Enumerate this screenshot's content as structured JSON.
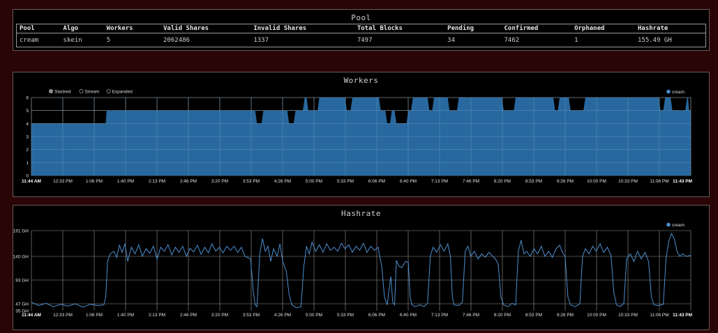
{
  "pool": {
    "title": "Pool",
    "headers": [
      "Pool",
      "Algo",
      "Workers",
      "Valid Shares",
      "Invalid Shares",
      "Total Blocks",
      "Pending",
      "Confirmed",
      "Orphaned",
      "Hashrate"
    ],
    "row": [
      "cream",
      "skein",
      "5",
      "2062486",
      "1337",
      "7497",
      "34",
      "7462",
      "1",
      "155.49 GH"
    ]
  },
  "colors": {
    "series": "#2a6ea6",
    "line": "#4b8fd0",
    "grid": "#bdbdbd",
    "panel_bg": "#000000",
    "page_bg": "#2a0505"
  },
  "chart_data": [
    {
      "type": "area",
      "title": "Workers",
      "controls": [
        "Stacked",
        "Stream",
        "Expanded"
      ],
      "legend": {
        "position": "top-right",
        "entries": [
          "cream"
        ]
      },
      "series_name": "cream",
      "x_ticks": [
        "11:44 AM",
        "12:33 PM",
        "1:06 PM",
        "1:40 PM",
        "2:13 PM",
        "2:46 PM",
        "3:20 PM",
        "3:53 PM",
        "4:26 PM",
        "5:00 PM",
        "5:33 PM",
        "6:06 PM",
        "6:40 PM",
        "7:13 PM",
        "7:46 PM",
        "8:20 PM",
        "8:53 PM",
        "9:26 PM",
        "10:00 PM",
        "10:33 PM",
        "11:06 PM",
        "11:43 PM"
      ],
      "x_range_minutes": [
        704,
        1423
      ],
      "ylim": [
        0,
        6
      ],
      "y_ticks": [
        "0",
        "1",
        "2",
        "3",
        "4",
        "5",
        "6"
      ],
      "grid": true,
      "points": [
        [
          704,
          4
        ],
        [
          785,
          4
        ],
        [
          786,
          5
        ],
        [
          948,
          5
        ],
        [
          950,
          4
        ],
        [
          955,
          4
        ],
        [
          957,
          5
        ],
        [
          983,
          5
        ],
        [
          985,
          4
        ],
        [
          990,
          4
        ],
        [
          992,
          5
        ],
        [
          1000,
          5
        ],
        [
          1002,
          6
        ],
        [
          1004,
          6
        ],
        [
          1006,
          5
        ],
        [
          1016,
          5
        ],
        [
          1018,
          6
        ],
        [
          1046,
          6
        ],
        [
          1048,
          5
        ],
        [
          1052,
          5
        ],
        [
          1054,
          6
        ],
        [
          1083,
          6
        ],
        [
          1085,
          5
        ],
        [
          1090,
          5
        ],
        [
          1092,
          4
        ],
        [
          1095,
          4
        ],
        [
          1097,
          5
        ],
        [
          1100,
          5
        ],
        [
          1102,
          4
        ],
        [
          1113,
          4
        ],
        [
          1115,
          5
        ],
        [
          1118,
          5
        ],
        [
          1120,
          6
        ],
        [
          1136,
          6
        ],
        [
          1138,
          5
        ],
        [
          1141,
          5
        ],
        [
          1143,
          6
        ],
        [
          1158,
          6
        ],
        [
          1160,
          5
        ],
        [
          1168,
          5
        ],
        [
          1170,
          6
        ],
        [
          1217,
          6
        ],
        [
          1219,
          5
        ],
        [
          1230,
          5
        ],
        [
          1232,
          6
        ],
        [
          1273,
          6
        ],
        [
          1275,
          5
        ],
        [
          1278,
          5
        ],
        [
          1280,
          6
        ],
        [
          1290,
          6
        ],
        [
          1292,
          5
        ],
        [
          1306,
          5
        ],
        [
          1308,
          6
        ],
        [
          1388,
          6
        ],
        [
          1390,
          5
        ],
        [
          1393,
          5
        ],
        [
          1395,
          6
        ],
        [
          1401,
          6
        ],
        [
          1403,
          5
        ],
        [
          1417,
          5
        ],
        [
          1419,
          6
        ],
        [
          1420,
          6
        ],
        [
          1421,
          5
        ],
        [
          1423,
          5
        ]
      ]
    },
    {
      "type": "line",
      "title": "Hashrate",
      "legend": {
        "position": "top-right",
        "entries": [
          "cream"
        ]
      },
      "series_name": "cream",
      "x_ticks": [
        "11:44 AM",
        "12:33 PM",
        "1:06 PM",
        "1:40 PM",
        "2:13 PM",
        "2:46 PM",
        "3:20 PM",
        "3:53 PM",
        "4:26 PM",
        "5:00 PM",
        "5:33 PM",
        "6:06 PM",
        "6:40 PM",
        "7:13 PM",
        "7:46 PM",
        "8:20 PM",
        "8:53 PM",
        "9:26 PM",
        "10:00 PM",
        "10:33 PM",
        "11:06 PM",
        "11:43 PM"
      ],
      "x_range_minutes": [
        704,
        1423
      ],
      "y_ticks": [
        {
          "label": "35 GH",
          "value": 35
        },
        {
          "label": "47 GH",
          "value": 47
        },
        {
          "label": "93 GH",
          "value": 93
        },
        {
          "label": "140 GH",
          "value": 140
        },
        {
          "label": "191 GH",
          "value": 191
        }
      ],
      "ylim": [
        35,
        191
      ],
      "grid": true,
      "points": [
        [
          704,
          50
        ],
        [
          712,
          44
        ],
        [
          720,
          48
        ],
        [
          728,
          42
        ],
        [
          736,
          46
        ],
        [
          744,
          43
        ],
        [
          752,
          47
        ],
        [
          760,
          41
        ],
        [
          768,
          46
        ],
        [
          776,
          44
        ],
        [
          783,
          45
        ],
        [
          785,
          60
        ],
        [
          787,
          130
        ],
        [
          790,
          145
        ],
        [
          794,
          150
        ],
        [
          797,
          138
        ],
        [
          800,
          162
        ],
        [
          803,
          148
        ],
        [
          806,
          165
        ],
        [
          809,
          130
        ],
        [
          813,
          158
        ],
        [
          817,
          145
        ],
        [
          821,
          163
        ],
        [
          825,
          140
        ],
        [
          829,
          155
        ],
        [
          833,
          146
        ],
        [
          837,
          160
        ],
        [
          841,
          135
        ],
        [
          845,
          158
        ],
        [
          849,
          150
        ],
        [
          853,
          163
        ],
        [
          857,
          143
        ],
        [
          861,
          158
        ],
        [
          865,
          148
        ],
        [
          869,
          160
        ],
        [
          873,
          140
        ],
        [
          877,
          156
        ],
        [
          881,
          149
        ],
        [
          885,
          162
        ],
        [
          889,
          144
        ],
        [
          893,
          158
        ],
        [
          897,
          147
        ],
        [
          901,
          165
        ],
        [
          905,
          150
        ],
        [
          909,
          158
        ],
        [
          913,
          147
        ],
        [
          917,
          160
        ],
        [
          921,
          152
        ],
        [
          925,
          160
        ],
        [
          929,
          148
        ],
        [
          933,
          158
        ],
        [
          937,
          140
        ],
        [
          943,
          135
        ],
        [
          946,
          70
        ],
        [
          948,
          45
        ],
        [
          950,
          42
        ],
        [
          953,
          145
        ],
        [
          956,
          175
        ],
        [
          959,
          150
        ],
        [
          962,
          160
        ],
        [
          965,
          130
        ],
        [
          968,
          155
        ],
        [
          972,
          140
        ],
        [
          975,
          165
        ],
        [
          978,
          130
        ],
        [
          982,
          110
        ],
        [
          985,
          65
        ],
        [
          988,
          45
        ],
        [
          993,
          40
        ],
        [
          998,
          42
        ],
        [
          1001,
          120
        ],
        [
          1004,
          160
        ],
        [
          1007,
          145
        ],
        [
          1010,
          168
        ],
        [
          1014,
          150
        ],
        [
          1018,
          163
        ],
        [
          1022,
          148
        ],
        [
          1026,
          165
        ],
        [
          1030,
          152
        ],
        [
          1034,
          158
        ],
        [
          1038,
          150
        ],
        [
          1042,
          166
        ],
        [
          1046,
          155
        ],
        [
          1050,
          163
        ],
        [
          1054,
          148
        ],
        [
          1058,
          160
        ],
        [
          1062,
          152
        ],
        [
          1066,
          166
        ],
        [
          1070,
          148
        ],
        [
          1074,
          160
        ],
        [
          1078,
          152
        ],
        [
          1082,
          158
        ],
        [
          1086,
          120
        ],
        [
          1089,
          60
        ],
        [
          1092,
          45
        ],
        [
          1094,
          75
        ],
        [
          1096,
          100
        ],
        [
          1098,
          50
        ],
        [
          1100,
          45
        ],
        [
          1102,
          132
        ],
        [
          1105,
          120
        ],
        [
          1108,
          118
        ],
        [
          1112,
          130
        ],
        [
          1115,
          128
        ],
        [
          1117,
          60
        ],
        [
          1119,
          45
        ],
        [
          1122,
          42
        ],
        [
          1128,
          45
        ],
        [
          1132,
          42
        ],
        [
          1136,
          48
        ],
        [
          1139,
          140
        ],
        [
          1142,
          158
        ],
        [
          1146,
          148
        ],
        [
          1150,
          163
        ],
        [
          1154,
          150
        ],
        [
          1158,
          165
        ],
        [
          1161,
          140
        ],
        [
          1163,
          60
        ],
        [
          1165,
          45
        ],
        [
          1170,
          44
        ],
        [
          1174,
          50
        ],
        [
          1177,
          150
        ],
        [
          1180,
          160
        ],
        [
          1183,
          140
        ],
        [
          1187,
          150
        ],
        [
          1191,
          135
        ],
        [
          1195,
          145
        ],
        [
          1199,
          138
        ],
        [
          1203,
          148
        ],
        [
          1207,
          140
        ],
        [
          1210,
          135
        ],
        [
          1213,
          125
        ],
        [
          1216,
          60
        ],
        [
          1219,
          45
        ],
        [
          1224,
          42
        ],
        [
          1228,
          48
        ],
        [
          1232,
          45
        ],
        [
          1235,
          150
        ],
        [
          1238,
          172
        ],
        [
          1241,
          145
        ],
        [
          1244,
          150
        ],
        [
          1248,
          140
        ],
        [
          1252,
          155
        ],
        [
          1256,
          145
        ],
        [
          1260,
          160
        ],
        [
          1264,
          140
        ],
        [
          1268,
          150
        ],
        [
          1272,
          138
        ],
        [
          1276,
          155
        ],
        [
          1280,
          162
        ],
        [
          1283,
          148
        ],
        [
          1286,
          140
        ],
        [
          1289,
          60
        ],
        [
          1292,
          45
        ],
        [
          1297,
          42
        ],
        [
          1302,
          47
        ],
        [
          1305,
          140
        ],
        [
          1308,
          155
        ],
        [
          1312,
          145
        ],
        [
          1316,
          160
        ],
        [
          1320,
          150
        ],
        [
          1324,
          165
        ],
        [
          1328,
          148
        ],
        [
          1332,
          158
        ],
        [
          1336,
          142
        ],
        [
          1339,
          70
        ],
        [
          1342,
          45
        ],
        [
          1346,
          42
        ],
        [
          1350,
          48
        ],
        [
          1353,
          135
        ],
        [
          1357,
          145
        ],
        [
          1361,
          130
        ],
        [
          1365,
          150
        ],
        [
          1369,
          135
        ],
        [
          1373,
          148
        ],
        [
          1377,
          130
        ],
        [
          1380,
          60
        ],
        [
          1383,
          45
        ],
        [
          1388,
          44
        ],
        [
          1393,
          46
        ],
        [
          1396,
          135
        ],
        [
          1399,
          170
        ],
        [
          1402,
          185
        ],
        [
          1405,
          175
        ],
        [
          1408,
          150
        ],
        [
          1411,
          140
        ],
        [
          1414,
          145
        ],
        [
          1418,
          140
        ],
        [
          1423,
          142
        ]
      ]
    }
  ]
}
